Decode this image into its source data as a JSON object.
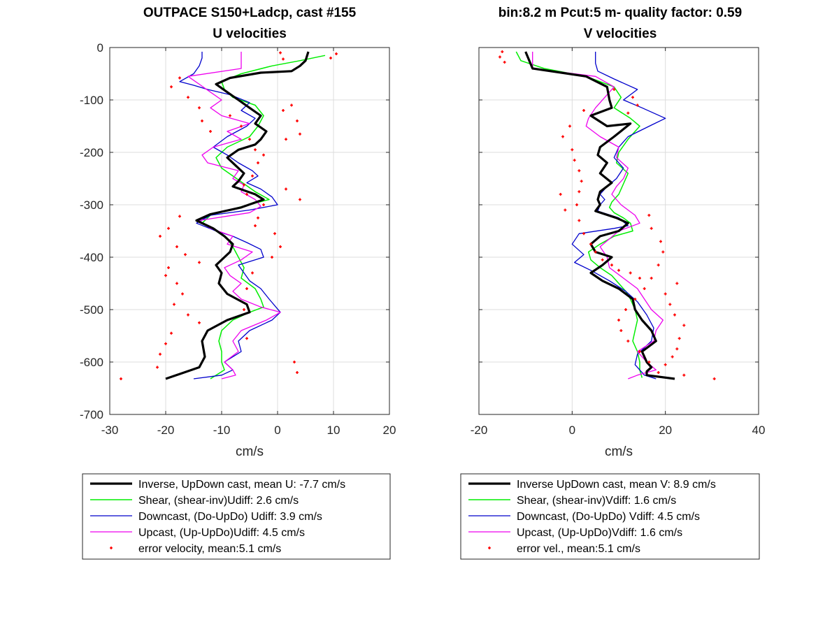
{
  "colors": {
    "inverse": "#000000",
    "shear": "#00ee00",
    "downcast": "#0000cc",
    "upcast": "#ee00ee",
    "error": "#ff0000",
    "grid": "#dcdcdc"
  },
  "chart_data": [
    {
      "type": "line",
      "title": "OUTPACE S150+Ladcp, cast #155",
      "subtitle": "U velocities",
      "xlabel": "cm/s",
      "ylabel": "",
      "xlim": [
        -30,
        20
      ],
      "ylim": [
        -700,
        0
      ],
      "xticks": [
        -30,
        -20,
        -10,
        0,
        10,
        20
      ],
      "yticks": [
        0,
        -100,
        -200,
        -300,
        -400,
        -500,
        -600,
        -700
      ],
      "grid": true,
      "legend": "below",
      "series": [
        {
          "name": "Inverse, UpDown cast, mean U:  -7.7 cm/s",
          "key": "inverse",
          "style": "line",
          "width": 3.2,
          "x": [
            5.5,
            5.0,
            4.0,
            2.5,
            -3.0,
            -8.5,
            -11.0,
            -9.0,
            -7.0,
            -5.0,
            -3.0,
            -4.0,
            -2.0,
            -3.0,
            -4.0,
            -7.0,
            -9.0,
            -7.5,
            -6.0,
            -7.0,
            -8.0,
            -4.0,
            -2.5,
            -6.5,
            -12.0,
            -14.5,
            -11.5,
            -9.5,
            -8.0,
            -8.5,
            -11.0,
            -10.0,
            -10.5,
            -9.0,
            -5.5,
            -5.0,
            -9.0,
            -12.5,
            -13.5,
            -13.0,
            -14.0,
            -20.0
          ],
          "y": [
            -8,
            -25,
            -35,
            -45,
            -48,
            -58,
            -70,
            -85,
            -100,
            -115,
            -130,
            -145,
            -160,
            -175,
            -185,
            -195,
            -210,
            -225,
            -240,
            -255,
            -265,
            -280,
            -290,
            -305,
            -318,
            -330,
            -345,
            -360,
            -375,
            -390,
            -415,
            -430,
            -450,
            -470,
            -490,
            -505,
            -520,
            -540,
            -560,
            -590,
            -610,
            -632
          ]
        },
        {
          "name": "Shear, (shear-inv)Udiff:  2.6 cm/s",
          "key": "shear",
          "style": "line",
          "width": 1.5,
          "x": [
            8.5,
            4.0,
            -1.0,
            -6.5,
            -10.0,
            -9.5,
            -8.0,
            -4.0,
            -2.5,
            -3.5,
            -5.0,
            -9.0,
            -11.0,
            -10.0,
            -8.0,
            -6.0,
            -4.0,
            -1.5,
            -7.0,
            -12.0,
            -13.5,
            -11.0,
            -9.0,
            -8.0,
            -7.0,
            -6.0,
            -6.5,
            -4.0,
            -3.0,
            -2.5,
            -5.0,
            -8.0,
            -10.0,
            -10.5,
            -10.0,
            -10.0,
            -9.5,
            -12.0
          ],
          "y": [
            -15,
            -25,
            -35,
            -50,
            -65,
            -80,
            -95,
            -110,
            -130,
            -150,
            -170,
            -190,
            -210,
            -230,
            -245,
            -260,
            -275,
            -290,
            -305,
            -320,
            -335,
            -350,
            -365,
            -380,
            -400,
            -420,
            -440,
            -460,
            -480,
            -495,
            -505,
            -520,
            -540,
            -560,
            -580,
            -600,
            -615,
            -632
          ]
        },
        {
          "name": "Downcast, (Do-UpDo) Udiff:  3.9 cm/s",
          "key": "downcast",
          "style": "line",
          "width": 1.3,
          "x": [
            -13.5,
            -13.5,
            -14.0,
            -15.0,
            -17.5,
            -15.0,
            -12.5,
            -8.5,
            -5.0,
            -6.5,
            -4.0,
            -5.5,
            -9.0,
            -11.5,
            -9.0,
            -7.0,
            -4.5,
            -3.5,
            -5.5,
            -3.0,
            -1.0,
            0.0,
            -5.0,
            -12.0,
            -14.5,
            -11.0,
            -8.0,
            -5.5,
            -3.0,
            -2.5,
            -7.0,
            -6.0,
            -5.0,
            -3.0,
            -1.5,
            0.5,
            -1.0,
            -5.0,
            -7.0,
            -6.5,
            -9.5,
            -8.0,
            -10.0,
            -15.0
          ],
          "y": [
            -8,
            -20,
            -35,
            -50,
            -65,
            -72,
            -80,
            -90,
            -105,
            -120,
            -135,
            -150,
            -170,
            -190,
            -205,
            -220,
            -235,
            -245,
            -258,
            -270,
            -285,
            -300,
            -310,
            -320,
            -335,
            -350,
            -360,
            -372,
            -385,
            -400,
            -415,
            -430,
            -445,
            -460,
            -480,
            -505,
            -520,
            -540,
            -560,
            -580,
            -600,
            -615,
            -625,
            -632
          ]
        },
        {
          "name": "Upcast, (Up-UpDo)Udiff:  4.5 cm/s",
          "key": "upcast",
          "style": "line",
          "width": 1.3,
          "x": [
            -6.5,
            -6.5,
            -6.5,
            -16.0,
            -14.0,
            -12.0,
            -10.0,
            -12.0,
            -10.0,
            -5.0,
            -9.0,
            -6.5,
            -11.5,
            -13.5,
            -12.5,
            -7.0,
            -8.0,
            -6.0,
            -6.5,
            -4.0,
            -3.0,
            -5.0,
            -14.0,
            -12.0,
            -8.0,
            -9.0,
            -4.5,
            -6.5,
            -9.5,
            -8.5,
            -6.5,
            -8.0,
            -6.5,
            -3.0,
            0.5,
            -2.0,
            -6.5,
            -8.0,
            -7.0,
            -9.5,
            -8.0,
            -7.5,
            -10.0
          ],
          "y": [
            -8,
            -25,
            -40,
            -55,
            -70,
            -85,
            -100,
            -115,
            -130,
            -145,
            -160,
            -175,
            -190,
            -205,
            -220,
            -235,
            -250,
            -262,
            -275,
            -290,
            -303,
            -315,
            -330,
            -345,
            -360,
            -375,
            -390,
            -405,
            -420,
            -435,
            -450,
            -465,
            -480,
            -495,
            -505,
            -520,
            -540,
            -560,
            -580,
            -600,
            -615,
            -625,
            -632
          ]
        },
        {
          "name": "error velocity, mean:5.1 cm/s",
          "key": "error",
          "style": "dots",
          "x": [
            0.5,
            10.5,
            1.0,
            9.5,
            -17.5,
            -19.0,
            -16.0,
            -14.0,
            -13.5,
            -12.0,
            -8.5,
            -6.5,
            -5.0,
            -4.0,
            1.0,
            2.5,
            3.5,
            4.0,
            1.5,
            -2.5,
            -3.5,
            -4.5,
            -6.0,
            -5.5,
            1.5,
            4.0,
            -17.5,
            -19.5,
            -21.0,
            -18.0,
            -16.5,
            -14.0,
            -19.5,
            -20.0,
            -18.0,
            -17.0,
            -18.5,
            -16.0,
            -14.0,
            -19.0,
            -20.0,
            -21.0,
            -21.5,
            -28.0,
            -2.5,
            -3.5,
            -4.0,
            -0.5,
            0.5,
            -1.0,
            -4.5,
            -5.5,
            -6.0,
            -5.5,
            3.0,
            3.5
          ],
          "y": [
            -10,
            -12,
            -22,
            -20,
            -58,
            -75,
            -95,
            -115,
            -140,
            -160,
            -130,
            -150,
            -175,
            -195,
            -120,
            -110,
            -140,
            -165,
            -175,
            -205,
            -220,
            -245,
            -262,
            -280,
            -270,
            -290,
            -322,
            -345,
            -360,
            -380,
            -395,
            -410,
            -420,
            -435,
            -450,
            -470,
            -490,
            -510,
            -525,
            -545,
            -565,
            -585,
            -610,
            -632,
            -300,
            -325,
            -340,
            -355,
            -380,
            -400,
            -430,
            -460,
            -500,
            -555,
            -600,
            -620
          ]
        }
      ]
    },
    {
      "type": "line",
      "title": "bin:8.2 m  Pcut:5 m- quality factor:  0.59",
      "subtitle": "V velocities",
      "xlabel": "cm/s",
      "ylabel": "",
      "xlim": [
        -20,
        40
      ],
      "ylim": [
        -700,
        0
      ],
      "xticks": [
        -20,
        0,
        20,
        40
      ],
      "yticks": [
        0,
        -100,
        -200,
        -300,
        -400,
        -500,
        -600,
        -700
      ],
      "grid": true,
      "legend": "below",
      "series": [
        {
          "name": "Inverse UpDown cast, mean V:  8.9 cm/s",
          "key": "inverse",
          "style": "line",
          "width": 3.2,
          "x": [
            -10.0,
            -8.5,
            3.0,
            7.5,
            8.0,
            8.5,
            4.0,
            7.5,
            12.5,
            9.0,
            6.0,
            5.5,
            7.5,
            6.0,
            8.5,
            6.0,
            5.5,
            6.0,
            5.0,
            9.5,
            12.0,
            10.0,
            6.0,
            4.0,
            5.0,
            8.5,
            6.5,
            4.0,
            6.5,
            10.0,
            13.0,
            13.5,
            15.0,
            17.0,
            18.0,
            15.0,
            16.0,
            17.0,
            16.0,
            16.0,
            22.0
          ],
          "y": [
            -8,
            -40,
            -55,
            -75,
            -100,
            -115,
            -130,
            -150,
            -145,
            -170,
            -190,
            -205,
            -220,
            -240,
            -258,
            -275,
            -290,
            -300,
            -312,
            -325,
            -335,
            -350,
            -360,
            -375,
            -390,
            -400,
            -415,
            -430,
            -445,
            -460,
            -480,
            -500,
            -520,
            -540,
            -560,
            -580,
            -600,
            -610,
            -618,
            -625,
            -632
          ]
        },
        {
          "name": "Shear, (shear-inv)Vdiff:  1.6 cm/s",
          "key": "shear",
          "style": "line",
          "width": 1.5,
          "x": [
            -12.0,
            -11.0,
            -6.0,
            3.0,
            9.0,
            10.5,
            9.0,
            12.5,
            14.5,
            12.0,
            10.0,
            9.5,
            12.0,
            11.0,
            10.0,
            8.5,
            8.0,
            9.0,
            11.0,
            12.5,
            13.0,
            9.0,
            6.0,
            3.5,
            4.0,
            6.0,
            8.5,
            10.0,
            11.5,
            12.5,
            13.5,
            14.0,
            13.5,
            13.0,
            14.0,
            14.5,
            14.5,
            15.0
          ],
          "y": [
            -8,
            -25,
            -40,
            -55,
            -75,
            -95,
            -115,
            -135,
            -150,
            -175,
            -200,
            -220,
            -240,
            -260,
            -280,
            -295,
            -305,
            -315,
            -325,
            -335,
            -350,
            -360,
            -375,
            -390,
            -405,
            -420,
            -435,
            -450,
            -465,
            -480,
            -500,
            -520,
            -540,
            -560,
            -580,
            -600,
            -615,
            -630
          ]
        },
        {
          "name": "Downcast, (Do-UpDo) Vdiff:  4.5 cm/s",
          "key": "downcast",
          "style": "line",
          "width": 1.3,
          "x": [
            5.0,
            5.0,
            5.5,
            9.0,
            14.0,
            11.0,
            15.0,
            20.0,
            17.0,
            12.0,
            10.0,
            9.0,
            11.0,
            9.5,
            7.5,
            6.0,
            7.0,
            6.0,
            5.5,
            10.0,
            12.0,
            9.0,
            1.5,
            0.0,
            2.5,
            0.5,
            4.0,
            8.0,
            11.5,
            14.0,
            16.0,
            17.5,
            17.0,
            14.0,
            13.5,
            15.5,
            18.0
          ],
          "y": [
            -8,
            -30,
            -45,
            -60,
            -80,
            -100,
            -115,
            -135,
            -148,
            -170,
            -190,
            -210,
            -230,
            -250,
            -265,
            -280,
            -290,
            -300,
            -312,
            -325,
            -340,
            -345,
            -355,
            -375,
            -395,
            -410,
            -425,
            -445,
            -465,
            -485,
            -510,
            -535,
            -560,
            -585,
            -605,
            -625,
            -632
          ]
        },
        {
          "name": "Upcast, (Up-UpDo)Vdiff:  1.6 cm/s",
          "key": "upcast",
          "style": "line",
          "width": 1.3,
          "x": [
            -8.5,
            -8.5,
            -8.5,
            5.0,
            9.0,
            7.0,
            5.0,
            3.5,
            3.0,
            6.0,
            10.0,
            9.5,
            12.0,
            11.0,
            9.5,
            8.5,
            10.5,
            13.5,
            14.5,
            10.0,
            8.0,
            6.0,
            7.5,
            8.0,
            11.0,
            14.0,
            15.5,
            17.0,
            19.5,
            18.0,
            17.5,
            14.0,
            16.0,
            18.0,
            14.0,
            12.0
          ],
          "y": [
            -8,
            -25,
            -40,
            -55,
            -75,
            -95,
            -115,
            -135,
            -150,
            -170,
            -190,
            -210,
            -230,
            -250,
            -265,
            -280,
            -300,
            -320,
            -335,
            -350,
            -365,
            -380,
            -400,
            -420,
            -440,
            -460,
            -480,
            -500,
            -520,
            -540,
            -560,
            -580,
            -600,
            -615,
            -625,
            -632
          ]
        },
        {
          "name": "error vel., mean:5.1 cm/s",
          "key": "error",
          "style": "dots",
          "x": [
            -15.0,
            -15.5,
            -14.5,
            9.0,
            13.0,
            14.0,
            12.0,
            2.5,
            -0.5,
            -2.0,
            0.0,
            0.5,
            1.5,
            2.0,
            1.5,
            1.0,
            -2.5,
            -1.5,
            1.5,
            2.5,
            4.0,
            5.0,
            6.5,
            8.5,
            10.0,
            12.5,
            14.5,
            16.5,
            17.0,
            19.0,
            19.5,
            18.5,
            17.0,
            15.5,
            13.5,
            11.5,
            10.0,
            10.5,
            12.0,
            14.5,
            16.5,
            18.5,
            20.0,
            21.5,
            22.5,
            23.0,
            24.0,
            22.0,
            21.0,
            20.0,
            22.5,
            24.0,
            30.5
          ],
          "y": [
            -8,
            -18,
            -28,
            -80,
            -95,
            -110,
            -125,
            -120,
            -150,
            -170,
            -195,
            -215,
            -235,
            -255,
            -275,
            -300,
            -280,
            -310,
            -330,
            -355,
            -375,
            -390,
            -405,
            -415,
            -425,
            -430,
            -440,
            -320,
            -345,
            -370,
            -390,
            -415,
            -440,
            -460,
            -480,
            -500,
            -520,
            -540,
            -560,
            -580,
            -600,
            -620,
            -605,
            -590,
            -575,
            -555,
            -530,
            -510,
            -490,
            -470,
            -450,
            -625,
            -632
          ]
        }
      ]
    }
  ]
}
